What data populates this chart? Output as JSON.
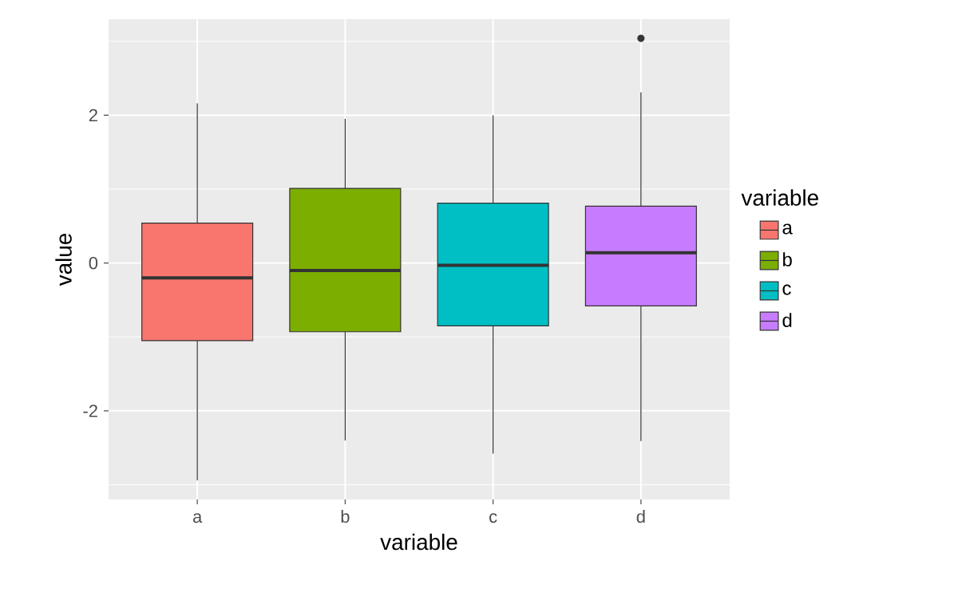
{
  "chart_data": {
    "type": "box",
    "xlabel": "variable",
    "ylabel": "value",
    "legend_title": "variable",
    "categories": [
      "a",
      "b",
      "c",
      "d"
    ],
    "series": [
      {
        "name": "a",
        "color": "#f8766d",
        "boxes": [
          {
            "low": -2.94,
            "q1": -1.05,
            "median": -0.2,
            "q3": 0.54,
            "high": 2.16
          },
          null,
          null,
          null
        ]
      },
      {
        "name": "b",
        "color": "#7cae00",
        "boxes": [
          null,
          {
            "low": -2.4,
            "q1": -0.93,
            "median": -0.1,
            "q3": 1.01,
            "high": 1.95
          },
          null,
          null
        ]
      },
      {
        "name": "c",
        "color": "#00bfc4",
        "boxes": [
          null,
          null,
          {
            "low": -2.58,
            "q1": -0.85,
            "median": -0.03,
            "q3": 0.81,
            "high": 2.0
          },
          null
        ]
      },
      {
        "name": "d",
        "color": "#c77cff",
        "boxes": [
          null,
          null,
          null,
          {
            "low": -2.41,
            "q1": -0.58,
            "median": 0.14,
            "q3": 0.77,
            "high": 2.31,
            "outliers": [
              3.04
            ]
          }
        ]
      }
    ],
    "ylim": [
      -3.2,
      3.3
    ],
    "yticks": [
      -2,
      0,
      2
    ],
    "grid": true,
    "legend": "right"
  }
}
